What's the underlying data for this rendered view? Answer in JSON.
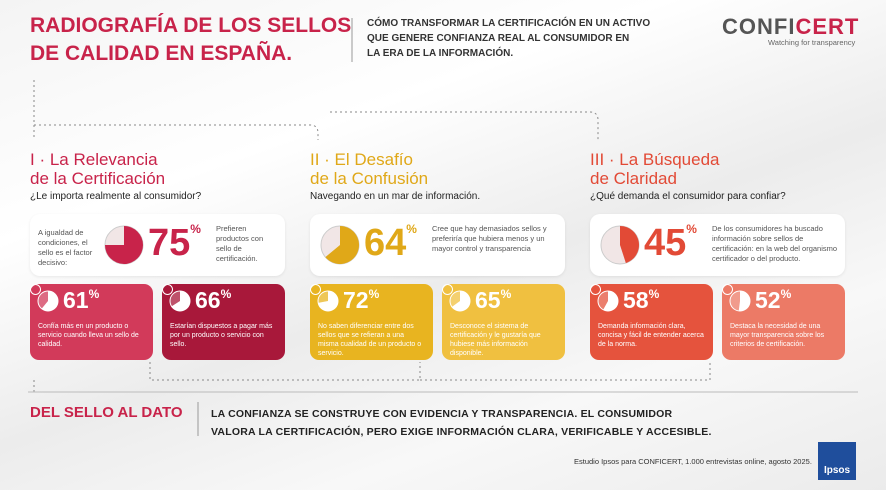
{
  "header": {
    "title": [
      "RADIOGRAFÍA DE LOS SELLOS",
      "DE CALIDAD EN ESPAÑA."
    ],
    "subtitle": [
      "CÓMO TRANSFORMAR LA CERTIFICACIÓN EN UN ACTIVO",
      "QUE GENERE CONFIANZA REAL AL CONSUMIDOR EN",
      "LA ERA DE LA INFORMACIÓN."
    ],
    "logo": [
      "CONFI",
      "CERT"
    ],
    "tagline": "Watching for transparency"
  },
  "sections": [
    {
      "title": [
        "I · La Relevancia",
        "de la Certificación"
      ],
      "question": "¿Le importa realmente al consumidor?",
      "color": "#c8234a",
      "card_colors": [
        "#d23a5a",
        "#a8183a"
      ],
      "main": {
        "lead": "A igualdad de condiciones, el sello es el factor decisivo:",
        "value": 75,
        "unit": "%",
        "text": "Prefieren productos con sello de certificación."
      },
      "cards": [
        {
          "value": 61,
          "unit": "%",
          "text": "Confía más en un producto o servicio cuando lleva un sello de calidad."
        },
        {
          "value": 66,
          "unit": "%",
          "text": "Estarían dispuestos a pagar más por un producto o servicio con sello."
        }
      ]
    },
    {
      "title": [
        "II · El Desafío",
        "de la Confusión"
      ],
      "question": "Navegando en un mar de información.",
      "color": "#e0a818",
      "card_colors": [
        "#e8b420",
        "#f0c040"
      ],
      "main": {
        "value": 64,
        "unit": "%",
        "text": "Cree que hay demasiados sellos y preferiría que hubiera menos y un mayor control y transparencia"
      },
      "cards": [
        {
          "value": 72,
          "unit": "%",
          "text": "No saben diferenciar entre dos sellos que se refieran a una misma cualidad de un producto o servicio."
        },
        {
          "value": 65,
          "unit": "%",
          "text": "Desconoce el sistema de certificación y le gustaría que hubiese más información disponible."
        }
      ]
    },
    {
      "title": [
        "III · La Búsqueda",
        "de Claridad"
      ],
      "question": "¿Qué demanda el consumidor para confiar?",
      "color": "#e24a36",
      "card_colors": [
        "#e5533d",
        "#ec7a66"
      ],
      "main": {
        "value": 45,
        "unit": "%",
        "text": "De los consumidores ha buscado información sobre sellos de certificación: en la web del organismo certificador o del producto."
      },
      "cards": [
        {
          "value": 58,
          "unit": "%",
          "text": "Demanda información clara, concisa y fácil de entender acerca de la norma."
        },
        {
          "value": 52,
          "unit": "%",
          "text": "Destaca la necesidad de una mayor transparencia sobre los criterios de certificación."
        }
      ]
    }
  ],
  "footer": {
    "title": "DEL SELLO AL DATO",
    "text": [
      "LA CONFIANZA SE CONSTRUYE CON EVIDENCIA Y TRANSPARENCIA.  EL CONSUMIDOR",
      "VALORA LA CERTIFICACIÓN, PERO EXIGE INFORMACIÓN CLARA, VERIFICABLE Y ACCESIBLE."
    ],
    "source": "Estudio Ipsos para CONFICERT, 1.000 entrevistas online, agosto 2025.",
    "badge": "Ipsos"
  }
}
